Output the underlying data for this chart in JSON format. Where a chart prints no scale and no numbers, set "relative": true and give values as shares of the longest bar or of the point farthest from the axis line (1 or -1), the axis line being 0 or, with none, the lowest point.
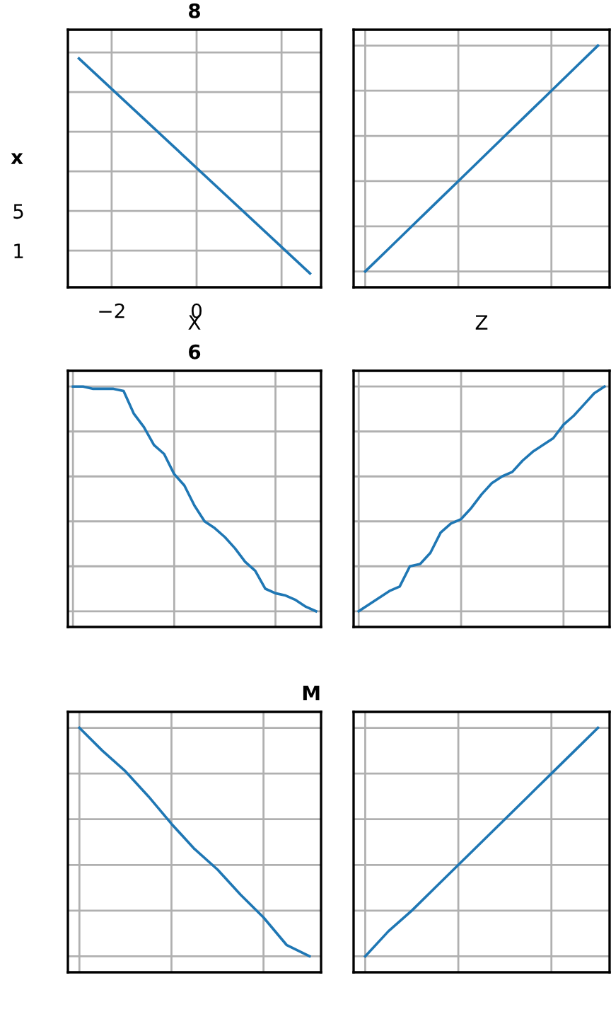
{
  "chart_data": [
    {
      "type": "line",
      "title": "8",
      "xlabel": "X",
      "ylabel": "x",
      "x": [
        -2.77,
        2.67
      ],
      "series": [
        {
          "color": "#1f77b4",
          "values": [
            20.4,
            -1.3
          ]
        }
      ],
      "xlim": [
        -3.03,
        2.93
      ],
      "xticks": [
        {
          "value": -2,
          "label": "−2"
        },
        0,
        {
          "value": 2,
          "label": null
        }
      ],
      "ylim": [
        -2.7,
        23.3
      ],
      "yticks": [
        {
          "value": 21,
          "label": null
        },
        {
          "value": 17,
          "label": null
        },
        {
          "value": 13,
          "label": null
        },
        {
          "value": 9,
          "label": null
        },
        5,
        1
      ],
      "grid": true
    },
    {
      "type": "line",
      "xlabel": "Z",
      "categories": [
        null,
        null,
        null,
        null,
        null,
        null,
        null,
        null,
        null,
        null,
        null
      ],
      "relative": true,
      "series": [
        {
          "color": "#1f77b4",
          "values": [
            0.0,
            0.1,
            0.2,
            0.3,
            0.4,
            0.5,
            0.6,
            0.7,
            0.8,
            0.9,
            1.0
          ]
        }
      ],
      "grid": true
    },
    {
      "type": "line",
      "title": "6",
      "relative": true,
      "categories": [
        null,
        null,
        null,
        null,
        null,
        null,
        null,
        null,
        null,
        null,
        null,
        null,
        null,
        null,
        null,
        null,
        null,
        null,
        null,
        null,
        null,
        null,
        null,
        null,
        null
      ],
      "series": [
        {
          "color": "#1f77b4",
          "values": [
            1.0,
            1.0,
            0.99,
            0.99,
            0.99,
            0.98,
            0.88,
            0.82,
            0.74,
            0.7,
            0.61,
            0.56,
            0.47,
            0.4,
            0.37,
            0.33,
            0.28,
            0.22,
            0.18,
            0.1,
            0.08,
            0.07,
            0.05,
            0.02,
            0.0
          ]
        }
      ],
      "grid": true
    },
    {
      "type": "line",
      "relative": true,
      "categories": [
        null,
        null,
        null,
        null,
        null,
        null,
        null,
        null,
        null,
        null,
        null,
        null,
        null,
        null,
        null,
        null,
        null,
        null,
        null,
        null,
        null,
        null,
        null,
        null,
        null
      ],
      "series": [
        {
          "color": "#1f77b4",
          "values": [
            0.0,
            0.03,
            0.06,
            0.09,
            0.11,
            0.2,
            0.21,
            0.26,
            0.35,
            0.39,
            0.41,
            0.46,
            0.52,
            0.57,
            0.6,
            0.62,
            0.67,
            0.71,
            0.74,
            0.77,
            0.83,
            0.87,
            0.92,
            0.97,
            1.0
          ]
        }
      ],
      "grid": true
    },
    {
      "type": "line",
      "title": "M",
      "relative": true,
      "categories": [
        null,
        null,
        null,
        null,
        null,
        null,
        null,
        null,
        null,
        null,
        null
      ],
      "series": [
        {
          "color": "#1f77b4",
          "values": [
            1.0,
            0.9,
            0.81,
            0.7,
            0.58,
            0.47,
            0.38,
            0.27,
            0.17,
            0.05,
            0.0
          ]
        }
      ],
      "grid": true
    },
    {
      "type": "line",
      "relative": true,
      "categories": [
        null,
        null,
        null,
        null,
        null,
        null,
        null,
        null,
        null,
        null,
        null
      ],
      "series": [
        {
          "color": "#1f77b4",
          "values": [
            0.0,
            0.11,
            0.2,
            0.3,
            0.4,
            0.5,
            0.6,
            0.7,
            0.8,
            0.9,
            1.0
          ]
        }
      ],
      "grid": true
    }
  ]
}
